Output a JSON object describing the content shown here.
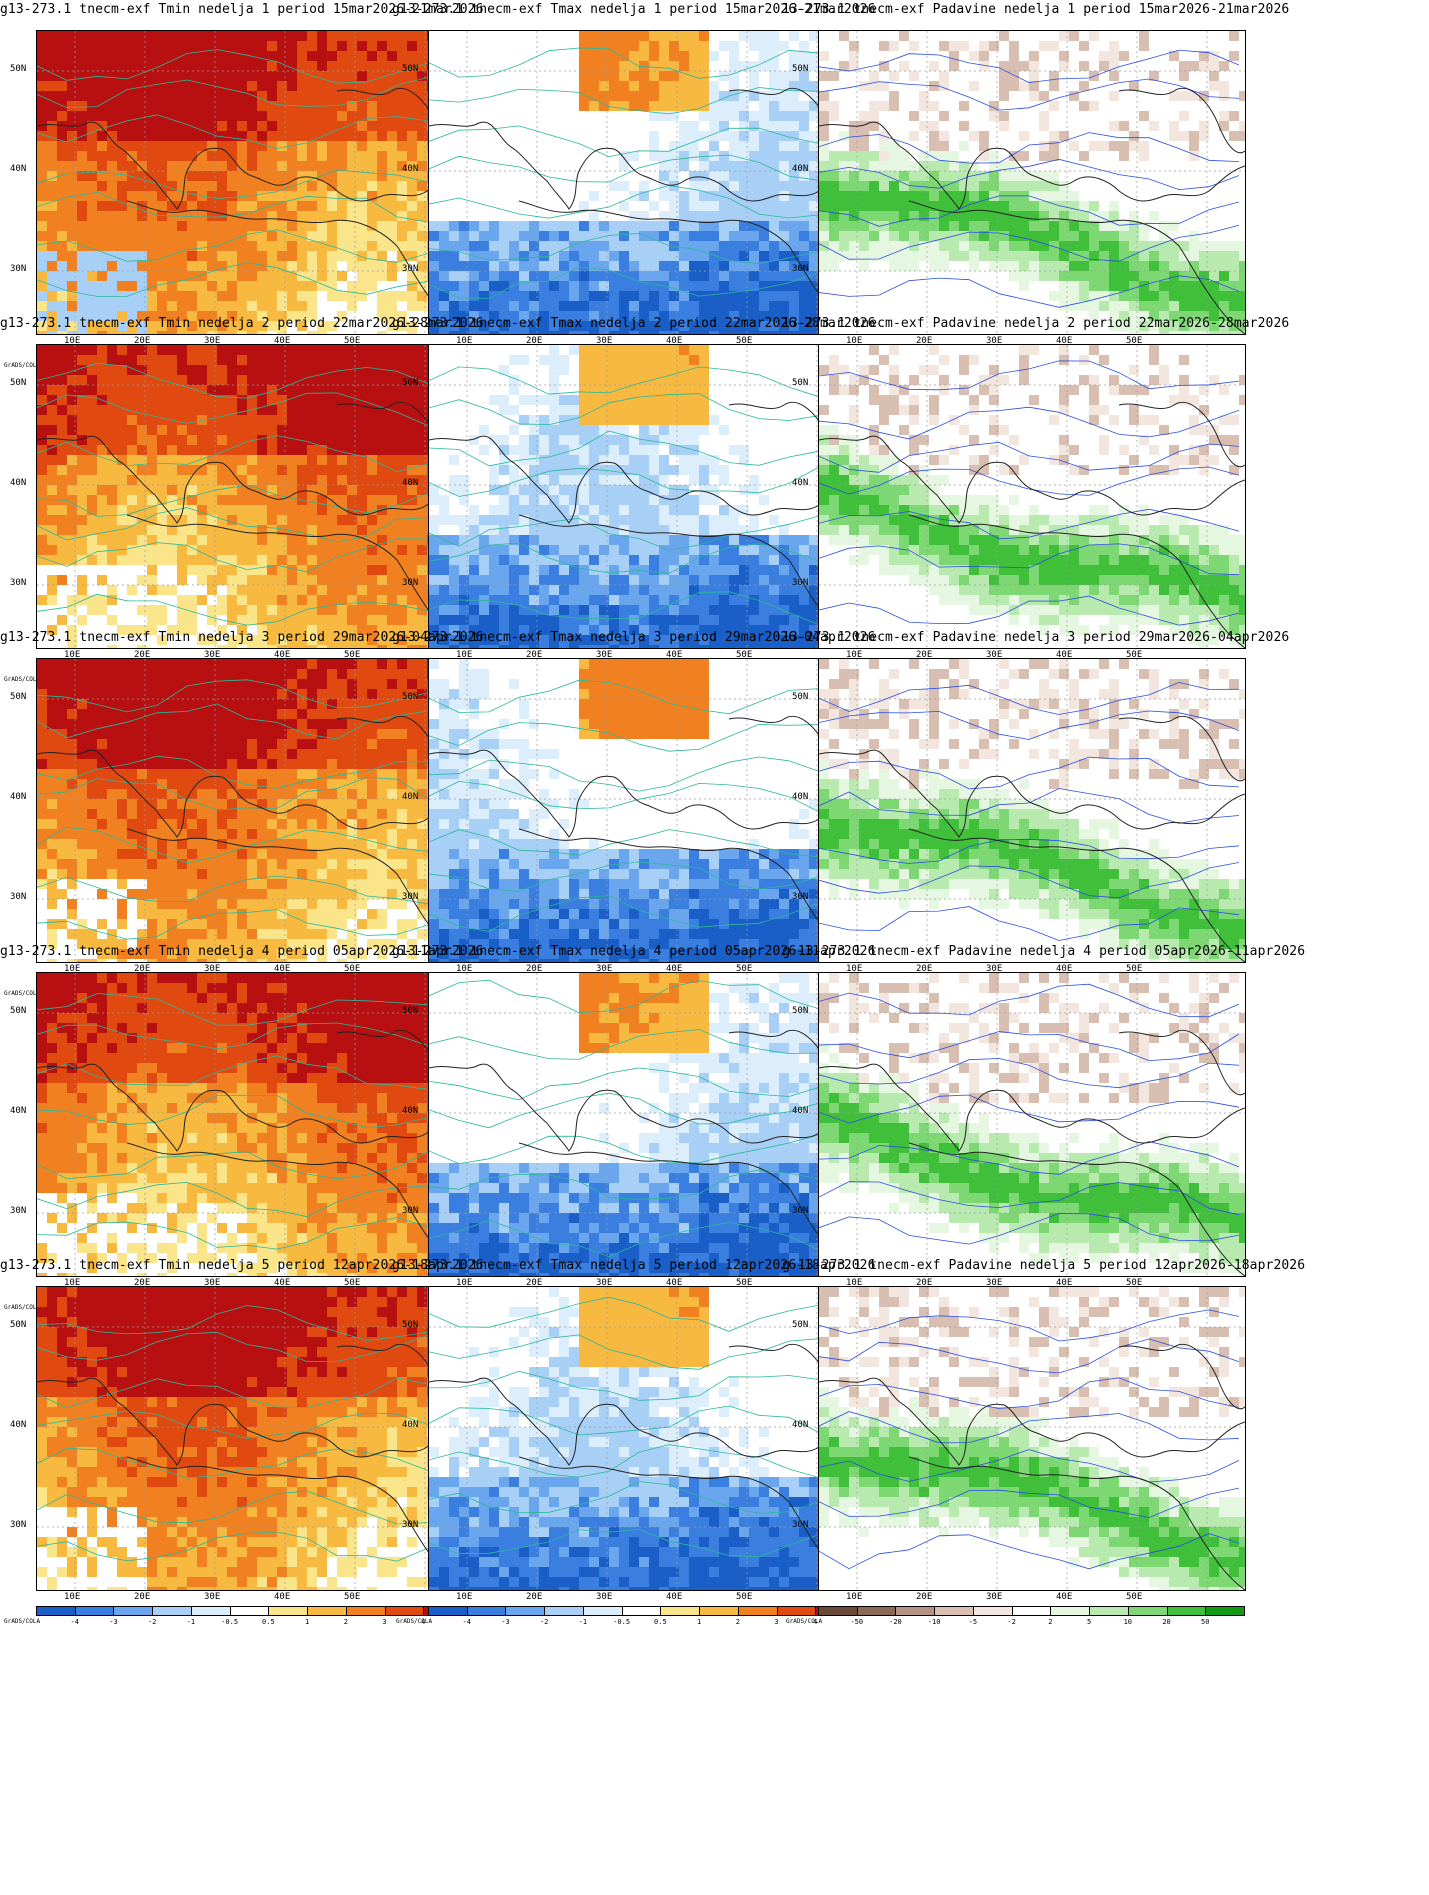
{
  "panels": [
    {
      "title": "g13-273.1 tnecm-exf Tmin nedelja 1 period 15mar2026-21mar2026",
      "kind": "tmin",
      "credit": "GrADS/COLA"
    },
    {
      "title": "g13-273.1 tnecm-exf Tmax nedelja 1 period 15mar2026-21mar2026",
      "kind": "tmax",
      "credit": "GrADS/COLA"
    },
    {
      "title": "13-273.1 tnecm-exf Padavine nedelja 1 period 15mar2026-21mar2026",
      "kind": "prec",
      "credit": "GrADS/COLA"
    },
    {
      "title": "g13-273.1 tnecm-exf Tmin nedelja 2 period 22mar2026-28mar2026",
      "kind": "tmin",
      "credit": "GrADS/COLA"
    },
    {
      "title": "g13-273.1 tnecm-exf Tmax nedelja 2 period 22mar2026-28mar2026",
      "kind": "tmax",
      "credit": "GrADS/COLA"
    },
    {
      "title": "13-273.1 tnecm-exf Padavine nedelja 2 period 22mar2026-28mar2026",
      "kind": "prec",
      "credit": "GrADS/COLA"
    },
    {
      "title": "g13-273.1 tnecm-exf Tmin nedelja 3 period 29mar2026-04apr2026",
      "kind": "tmin",
      "credit": "GrADS/COLA"
    },
    {
      "title": "g13-273.1 tnecm-exf Tmax nedelja 3 period 29mar2026-04apr2026",
      "kind": "tmax",
      "credit": "GrADS/COLA"
    },
    {
      "title": "13-273.1 tnecm-exf Padavine nedelja 3 period 29mar2026-04apr2026",
      "kind": "prec",
      "credit": "GrADS/COLA"
    },
    {
      "title": "g13-273.1 tnecm-exf Tmin nedelja 4 period 05apr2026-11apr2026",
      "kind": "tmin",
      "credit": "GrADS/COLA"
    },
    {
      "title": "g13-273.1 tnecm-exf Tmax nedelja 4 period 05apr2026-11apr2026",
      "kind": "tmax",
      "credit": "GrADS/COLA"
    },
    {
      "title": "ɡ 13-273.1 tnecm-exf Padavine nedelja 4 period 05apr2026-11apr2026",
      "kind": "prec",
      "credit": "GrADS/COLA"
    },
    {
      "title": "g13-273.1 tnecm-exf Tmin nedelja 5 period 12apr2026-18apr2026",
      "kind": "tmin",
      "credit": "GrADS/COLA"
    },
    {
      "title": "g13-273.1 tnecm-exf Tmax nedelja 5 period 12apr2026-18apr2026",
      "kind": "tmax",
      "credit": "GrADS/COLA"
    },
    {
      "title": "ɡ 13-273.1 tnecm-exf Padavine nedelja 5 period 12apr2026-18apr2026",
      "kind": "prec",
      "credit": "GrADS/COLA"
    }
  ],
  "axes": {
    "lat_labels": [
      "50N",
      "40N",
      "30N"
    ],
    "lon_labels": [
      "10E",
      "20E",
      "30E",
      "40E",
      "50E"
    ]
  },
  "colorbars": {
    "temp": {
      "labels": [
        "-4",
        "-3",
        "-2",
        "-1",
        "-0.5",
        "0.5",
        "1",
        "2",
        "3",
        "4"
      ],
      "colors": [
        "#1a5fc8",
        "#3a7fe0",
        "#6aa6ee",
        "#a8d0f6",
        "#dcedfb",
        "#ffffff",
        "#fbe58a",
        "#f7b940",
        "#f08020",
        "#e04a10",
        "#b81010"
      ]
    },
    "prec": {
      "labels": [
        "-50",
        "-20",
        "-10",
        "-5",
        "-2",
        "2",
        "5",
        "10",
        "20",
        "50"
      ],
      "colors": [
        "#6b4a3a",
        "#8c6a58",
        "#b89282",
        "#d9bfb2",
        "#f2e6df",
        "#ffffff",
        "#e6f7e1",
        "#b8eab0",
        "#7dd874",
        "#3fbf3a",
        "#129a12"
      ]
    }
  }
}
